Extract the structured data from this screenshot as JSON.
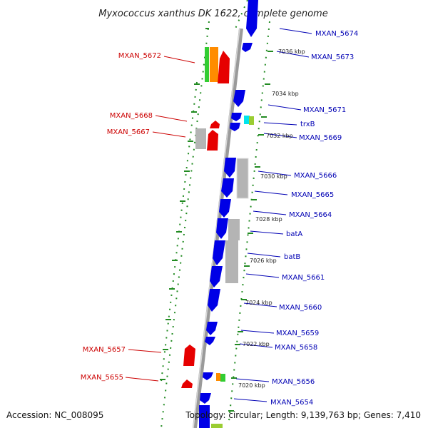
{
  "title": "Myxococcus xanthus DK 1622, complete genome",
  "footer": {
    "accession": "Accession: NC_008095",
    "summary": "Topology: circular; Length: 9,139,763 bp; Genes: 7,410"
  },
  "colors": {
    "backbone": "#808080",
    "forward": "#0000e6",
    "reverse": "#e60000",
    "gray": "#b4b4b4",
    "dotted": "#228b22",
    "label_left": "#cc0000",
    "label_right": "#0000b4"
  },
  "kbp_labels": [
    "7036 kbp",
    "7034 kbp",
    "7032 kbp",
    "7030 kbp",
    "7028 kbp",
    "7026 kbp",
    "7024 kbp",
    "7022 kbp",
    "7020 kbp"
  ],
  "left_labels": [
    "MXAN_5672",
    "MXAN_5668",
    "MXAN_5667",
    "MXAN_5657",
    "MXAN_5655"
  ],
  "right_labels": [
    "MXAN_5674",
    "MXAN_5673",
    "MXAN_5671",
    "trxB",
    "MXAN_5669",
    "MXAN_5666",
    "MXAN_5665",
    "MXAN_5664",
    "batA",
    "batB",
    "MXAN_5661",
    "MXAN_5660",
    "MXAN_5659",
    "MXAN_5658",
    "MXAN_5656",
    "MXAN_5654"
  ]
}
